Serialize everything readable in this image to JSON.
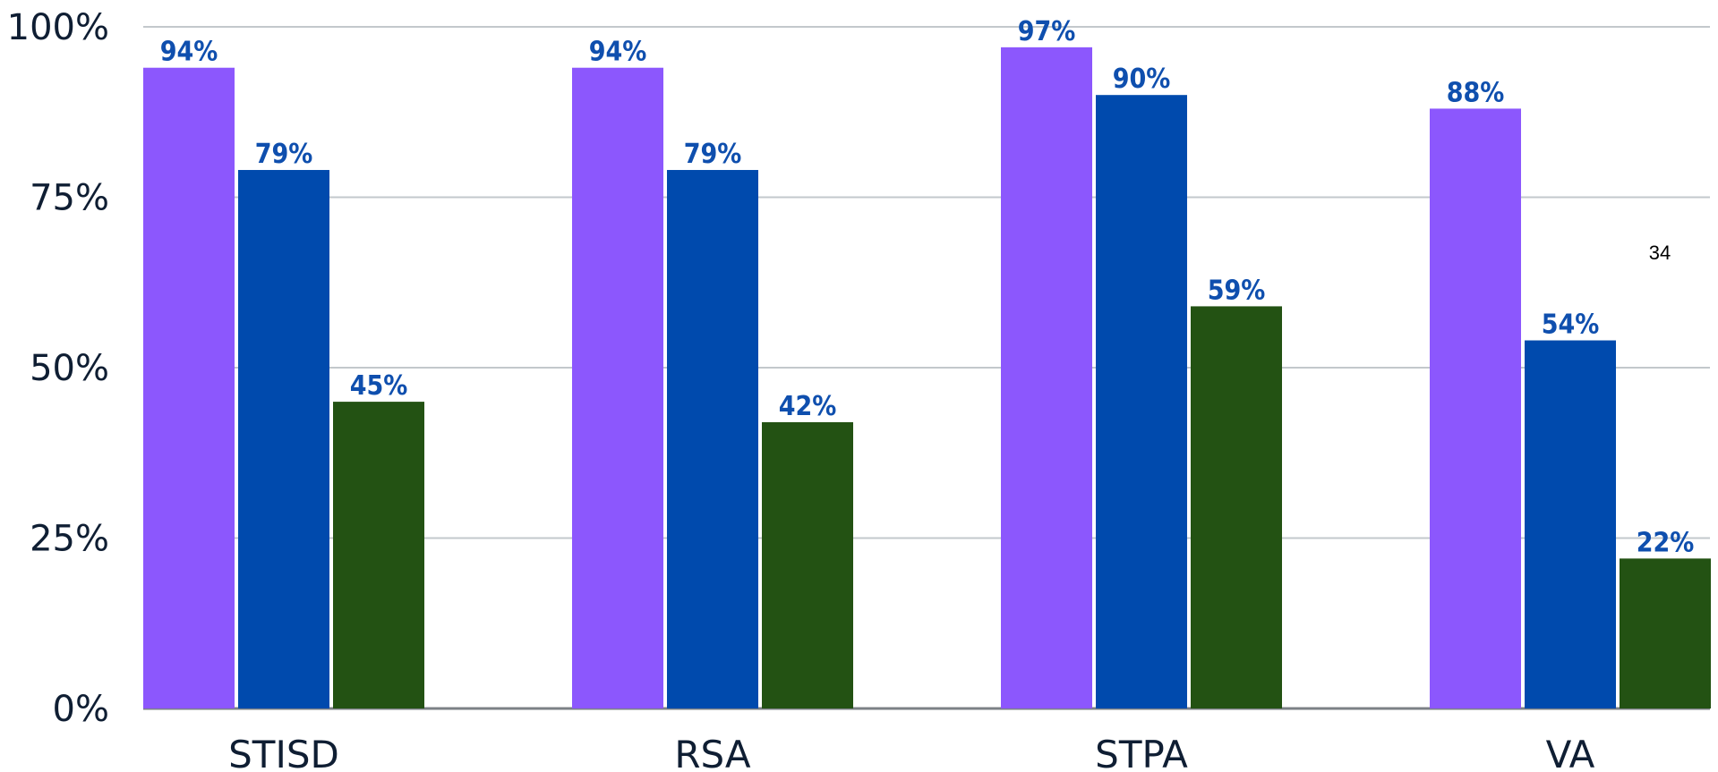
{
  "chart_data": {
    "type": "bar",
    "categories": [
      "STISD",
      "RSA",
      "STPA",
      "VA"
    ],
    "series": [
      {
        "color": "#8c57fd",
        "values": [
          94,
          94,
          97,
          88
        ]
      },
      {
        "color": "#004aad",
        "values": [
          79,
          79,
          90,
          54
        ]
      },
      {
        "color": "#235213",
        "values": [
          45,
          42,
          59,
          22
        ]
      }
    ],
    "value_suffix": "%",
    "ylim": [
      0,
      100
    ],
    "yticks": [
      0,
      25,
      50,
      75,
      100
    ],
    "ytick_labels": [
      "0%",
      "25%",
      "50%",
      "75%",
      "100%"
    ],
    "grid": true,
    "title": "",
    "xlabel": "",
    "ylabel": "",
    "colors": {
      "label": "#0f4fae",
      "grid": "#c3c8cc",
      "axis": "#7c8186",
      "tick_text": "#0f1e33"
    }
  },
  "annotation": {
    "text": "34"
  }
}
